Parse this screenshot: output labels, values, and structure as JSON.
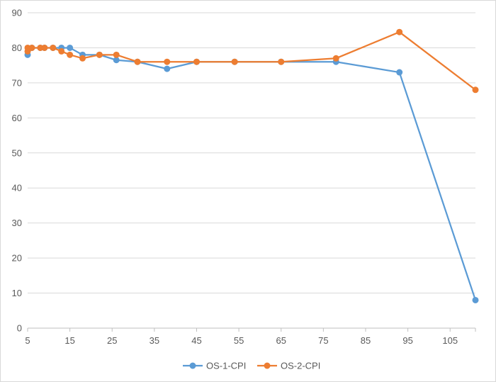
{
  "chart_data": {
    "type": "line",
    "title": "",
    "xlabel": "",
    "ylabel": "",
    "xlim": [
      5,
      111
    ],
    "ylim": [
      0,
      90
    ],
    "x_ticks": [
      5,
      15,
      25,
      35,
      45,
      55,
      65,
      75,
      85,
      95,
      105
    ],
    "y_ticks": [
      0,
      10,
      20,
      30,
      40,
      50,
      60,
      70,
      80,
      90
    ],
    "grid": {
      "horizontal": true,
      "vertical": false
    },
    "legend_position": "bottom",
    "series": [
      {
        "name": "OS-1-CPI",
        "color": "#5b9bd5",
        "x": [
          5,
          6,
          8,
          9,
          11,
          13,
          15,
          18,
          22,
          26,
          31,
          38,
          45,
          54,
          65,
          78,
          93,
          111
        ],
        "y": [
          78,
          80,
          80,
          80,
          80,
          80,
          80,
          78,
          78,
          76.5,
          76,
          74,
          76,
          76,
          76,
          76,
          73,
          8
        ]
      },
      {
        "name": "OS-2-CPI",
        "color": "#ed7d31",
        "x": [
          5,
          5,
          6,
          8,
          9,
          11,
          13,
          15,
          18,
          22,
          26,
          31,
          38,
          45,
          54,
          65,
          78,
          93,
          111
        ],
        "y": [
          79,
          80,
          80,
          80,
          80,
          80,
          79,
          78,
          77,
          78,
          78,
          76,
          76,
          76,
          76,
          76,
          77,
          84.5,
          68
        ]
      }
    ]
  }
}
